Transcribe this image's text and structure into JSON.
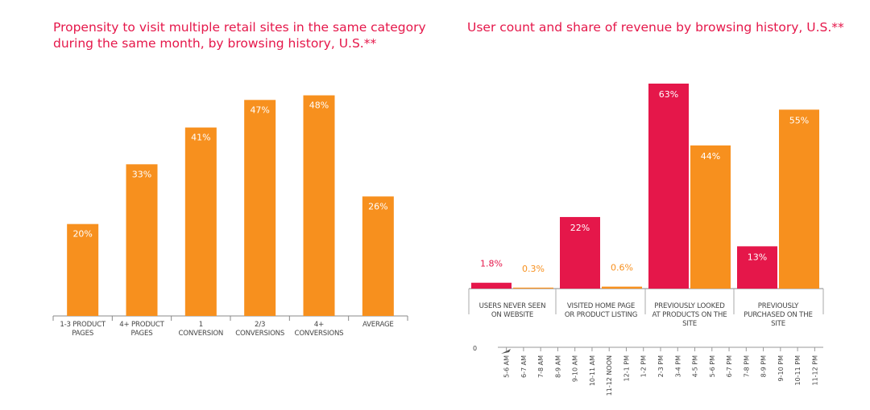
{
  "chart_data": [
    {
      "type": "bar",
      "title": "Propensity to visit multiple retail sites in the same category during the same month, by browsing history, U.S.**",
      "categories": [
        "1-3 PRODUCT PAGES",
        "4+ PRODUCT PAGES",
        "1 CONVERSION",
        "2/3 CONVERSIONS",
        "4+ CONVERSIONS",
        "AVERAGE"
      ],
      "values": [
        20,
        33,
        41,
        47,
        48,
        26
      ],
      "value_labels": [
        "20%",
        "33%",
        "41%",
        "47%",
        "48%",
        "26%"
      ],
      "ylim": [
        0,
        53
      ],
      "grid": false,
      "color": "#f7901e"
    },
    {
      "type": "bar",
      "title": "User count and share of revenue by browsing history, U.S.**",
      "categories": [
        "USERS NEVER SEEN ON WEBSITE",
        "VISITED HOME PAGE OR PRODUCT LISTING",
        "PREVIOUSLY LOOKED AT PRODUCTS ON THE SITE",
        "PREVIOUSLY PURCHASED ON THE SITE"
      ],
      "series": [
        {
          "values": [
            1.8,
            22,
            63,
            13
          ],
          "labels": [
            "1.8%",
            "22%",
            "63%",
            "13%"
          ],
          "color": "#e5174a"
        },
        {
          "values": [
            0.3,
            0.6,
            44,
            55
          ],
          "labels": [
            "0.3%",
            "0.6%",
            "44%",
            "55%"
          ],
          "color": "#f7901e"
        }
      ],
      "ylim": [
        0,
        70
      ],
      "grid": false,
      "background_axis": {
        "zero_label": "0",
        "hours": [
          "5-6 AM",
          "6-7 AM",
          "7-8 AM",
          "8-9 AM",
          "9-10 AM",
          "10-11 AM",
          "11-12 NOON",
          "12-1 PM",
          "1-2 PM",
          "2-3 PM",
          "3-4 PM",
          "4-5 PM",
          "5-6 PM",
          "6-7 PM",
          "7-8 PM",
          "8-9 PM",
          "9-10 PM",
          "10-11 PM",
          "11-12 PM"
        ]
      }
    }
  ]
}
